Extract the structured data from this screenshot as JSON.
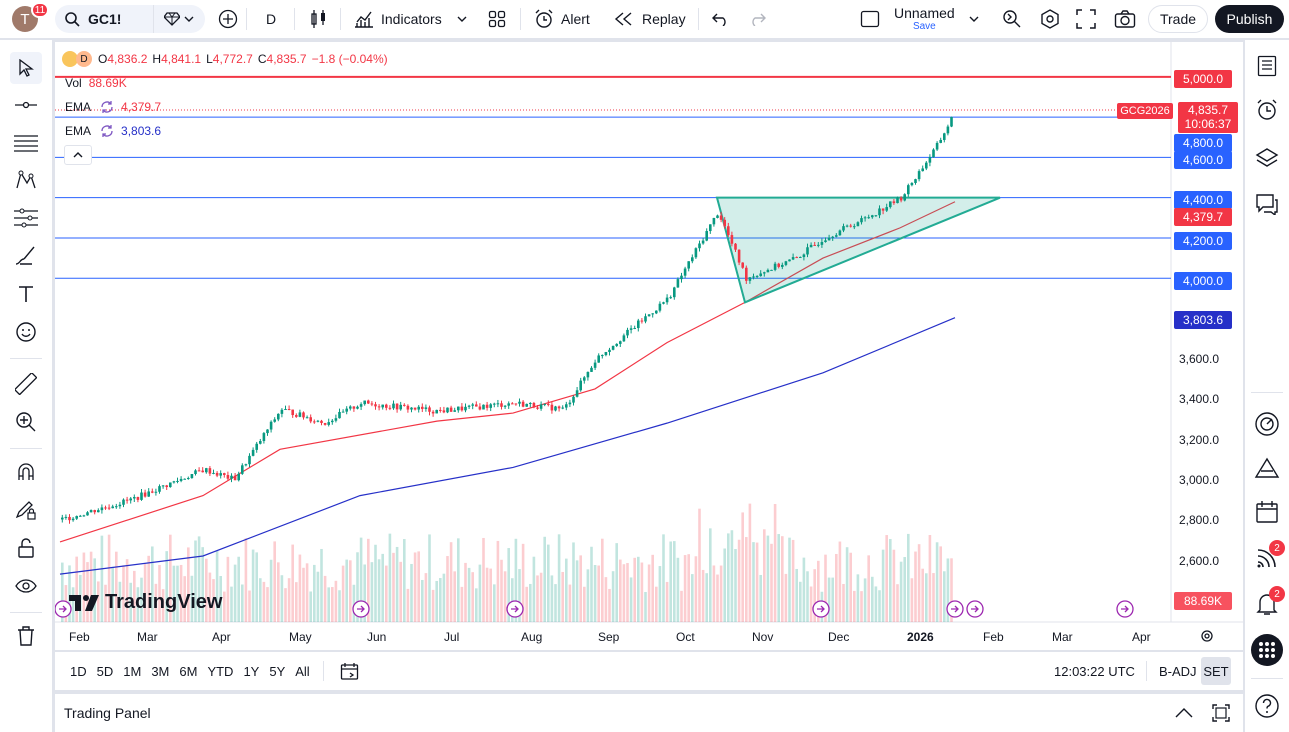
{
  "header": {
    "avatar_letter": "T",
    "notifications": "11",
    "symbol": "GC1!",
    "interval": "D",
    "indicators_label": "Indicators",
    "alert_label": "Alert",
    "replay_label": "Replay",
    "layout_name": "Unnamed",
    "save_label": "Save",
    "trade_label": "Trade",
    "publish_label": "Publish"
  },
  "legend": {
    "interval": "D",
    "o_label": "O",
    "open": "4,836.2",
    "h_label": "H",
    "high": "4,841.1",
    "l_label": "L",
    "low": "4,772.7",
    "c_label": "C",
    "close": "4,835.7",
    "change": "−1.8 (−0.04%)",
    "vol_label": "Vol",
    "vol_value": "88.69K",
    "ema1_label": "EMA",
    "ema1_value": "4,379.7",
    "ema2_label": "EMA",
    "ema2_value": "3,803.6"
  },
  "price_axis": {
    "levels": [
      "3,600.0",
      "3,400.0",
      "3,200.0",
      "3,000.0",
      "2,800.0",
      "2,600.0"
    ],
    "labels": {
      "l5000": "5,000.0",
      "symbol_tag": "GCG2026",
      "last": "4,835.7",
      "countdown": "10:06:37",
      "l4800": "4,800.0",
      "l4600": "4,600.0",
      "l4400": "4,400.0",
      "ema1": "4,379.7",
      "l4200": "4,200.0",
      "l4000": "4,000.0",
      "ema2": "3,803.6",
      "vol": "88.69K"
    }
  },
  "time_axis": [
    "Feb",
    "Mar",
    "Apr",
    "May",
    "Jun",
    "Jul",
    "Aug",
    "Sep",
    "Oct",
    "Nov",
    "Dec",
    "2026",
    "Feb",
    "Mar",
    "Apr"
  ],
  "watermark": "TradingView",
  "bottom": {
    "ranges": [
      "1D",
      "5D",
      "1M",
      "3M",
      "6M",
      "YTD",
      "1Y",
      "5Y",
      "All"
    ],
    "clock": "12:03:22 UTC",
    "badj": "B-ADJ",
    "set": "SET"
  },
  "trading_panel": "Trading Panel",
  "right_badges": {
    "ideas": "2",
    "alerts": "2"
  },
  "colors": {
    "up": "#089981",
    "down": "#f23645",
    "ema_fast": "#f23645",
    "ema_slow": "#2630c8",
    "hline_blue": "#2962ff",
    "hline_red": "#f23645",
    "triangle": "#22ab94"
  },
  "chart_data": {
    "type": "candlestick",
    "symbol": "GC1!",
    "interval": "D",
    "ylim": [
      2500,
      5100
    ],
    "x_months": [
      "Feb",
      "Mar",
      "Apr",
      "May",
      "Jun",
      "Jul",
      "Aug",
      "Sep",
      "Oct",
      "Nov",
      "Dec",
      "2026",
      "Feb",
      "Mar",
      "Apr"
    ],
    "close_path": [
      [
        "Feb",
        2800
      ],
      [
        "Mar",
        2900
      ],
      [
        "Apr",
        3050
      ],
      [
        "Apr-mid",
        3000
      ],
      [
        "May",
        3350
      ],
      [
        "May-mid",
        3280
      ],
      [
        "Jun",
        3380
      ],
      [
        "Jul",
        3340
      ],
      [
        "Aug",
        3380
      ],
      [
        "Aug-mid",
        3350
      ],
      [
        "Sep",
        3600
      ],
      [
        "Oct",
        3900
      ],
      [
        "Oct-mid",
        4330
      ],
      [
        "Nov",
        4000
      ],
      [
        "Nov-mid",
        4100
      ],
      [
        "Dec",
        4200
      ],
      [
        "Dec-mid",
        4300
      ],
      [
        "2026",
        4400
      ],
      [
        "2026-mid",
        4650
      ],
      [
        "Jan-end",
        4835.7
      ]
    ],
    "ema_fast_path": [
      [
        "Feb",
        2690
      ],
      [
        "Apr",
        2920
      ],
      [
        "May",
        3150
      ],
      [
        "Jul",
        3290
      ],
      [
        "Aug",
        3330
      ],
      [
        "Sep",
        3450
      ],
      [
        "Oct",
        3680
      ],
      [
        "Nov",
        3880
      ],
      [
        "Dec",
        4100
      ],
      [
        "2026",
        4250
      ],
      [
        "Jan-end",
        4379.7
      ]
    ],
    "ema_slow_path": [
      [
        "Feb",
        2530
      ],
      [
        "Apr",
        2620
      ],
      [
        "Jun",
        2920
      ],
      [
        "Aug",
        3060
      ],
      [
        "Oct",
        3280
      ],
      [
        "Dec",
        3530
      ],
      [
        "Jan-end",
        3803.6
      ]
    ],
    "horizontal_levels": [
      5000,
      4800,
      4600,
      4400,
      4200,
      4000
    ],
    "triangle": {
      "top_left": [
        "Oct-mid",
        4400
      ],
      "bottom": [
        "Nov",
        3880
      ],
      "apex": [
        "Feb",
        4400
      ]
    }
  }
}
